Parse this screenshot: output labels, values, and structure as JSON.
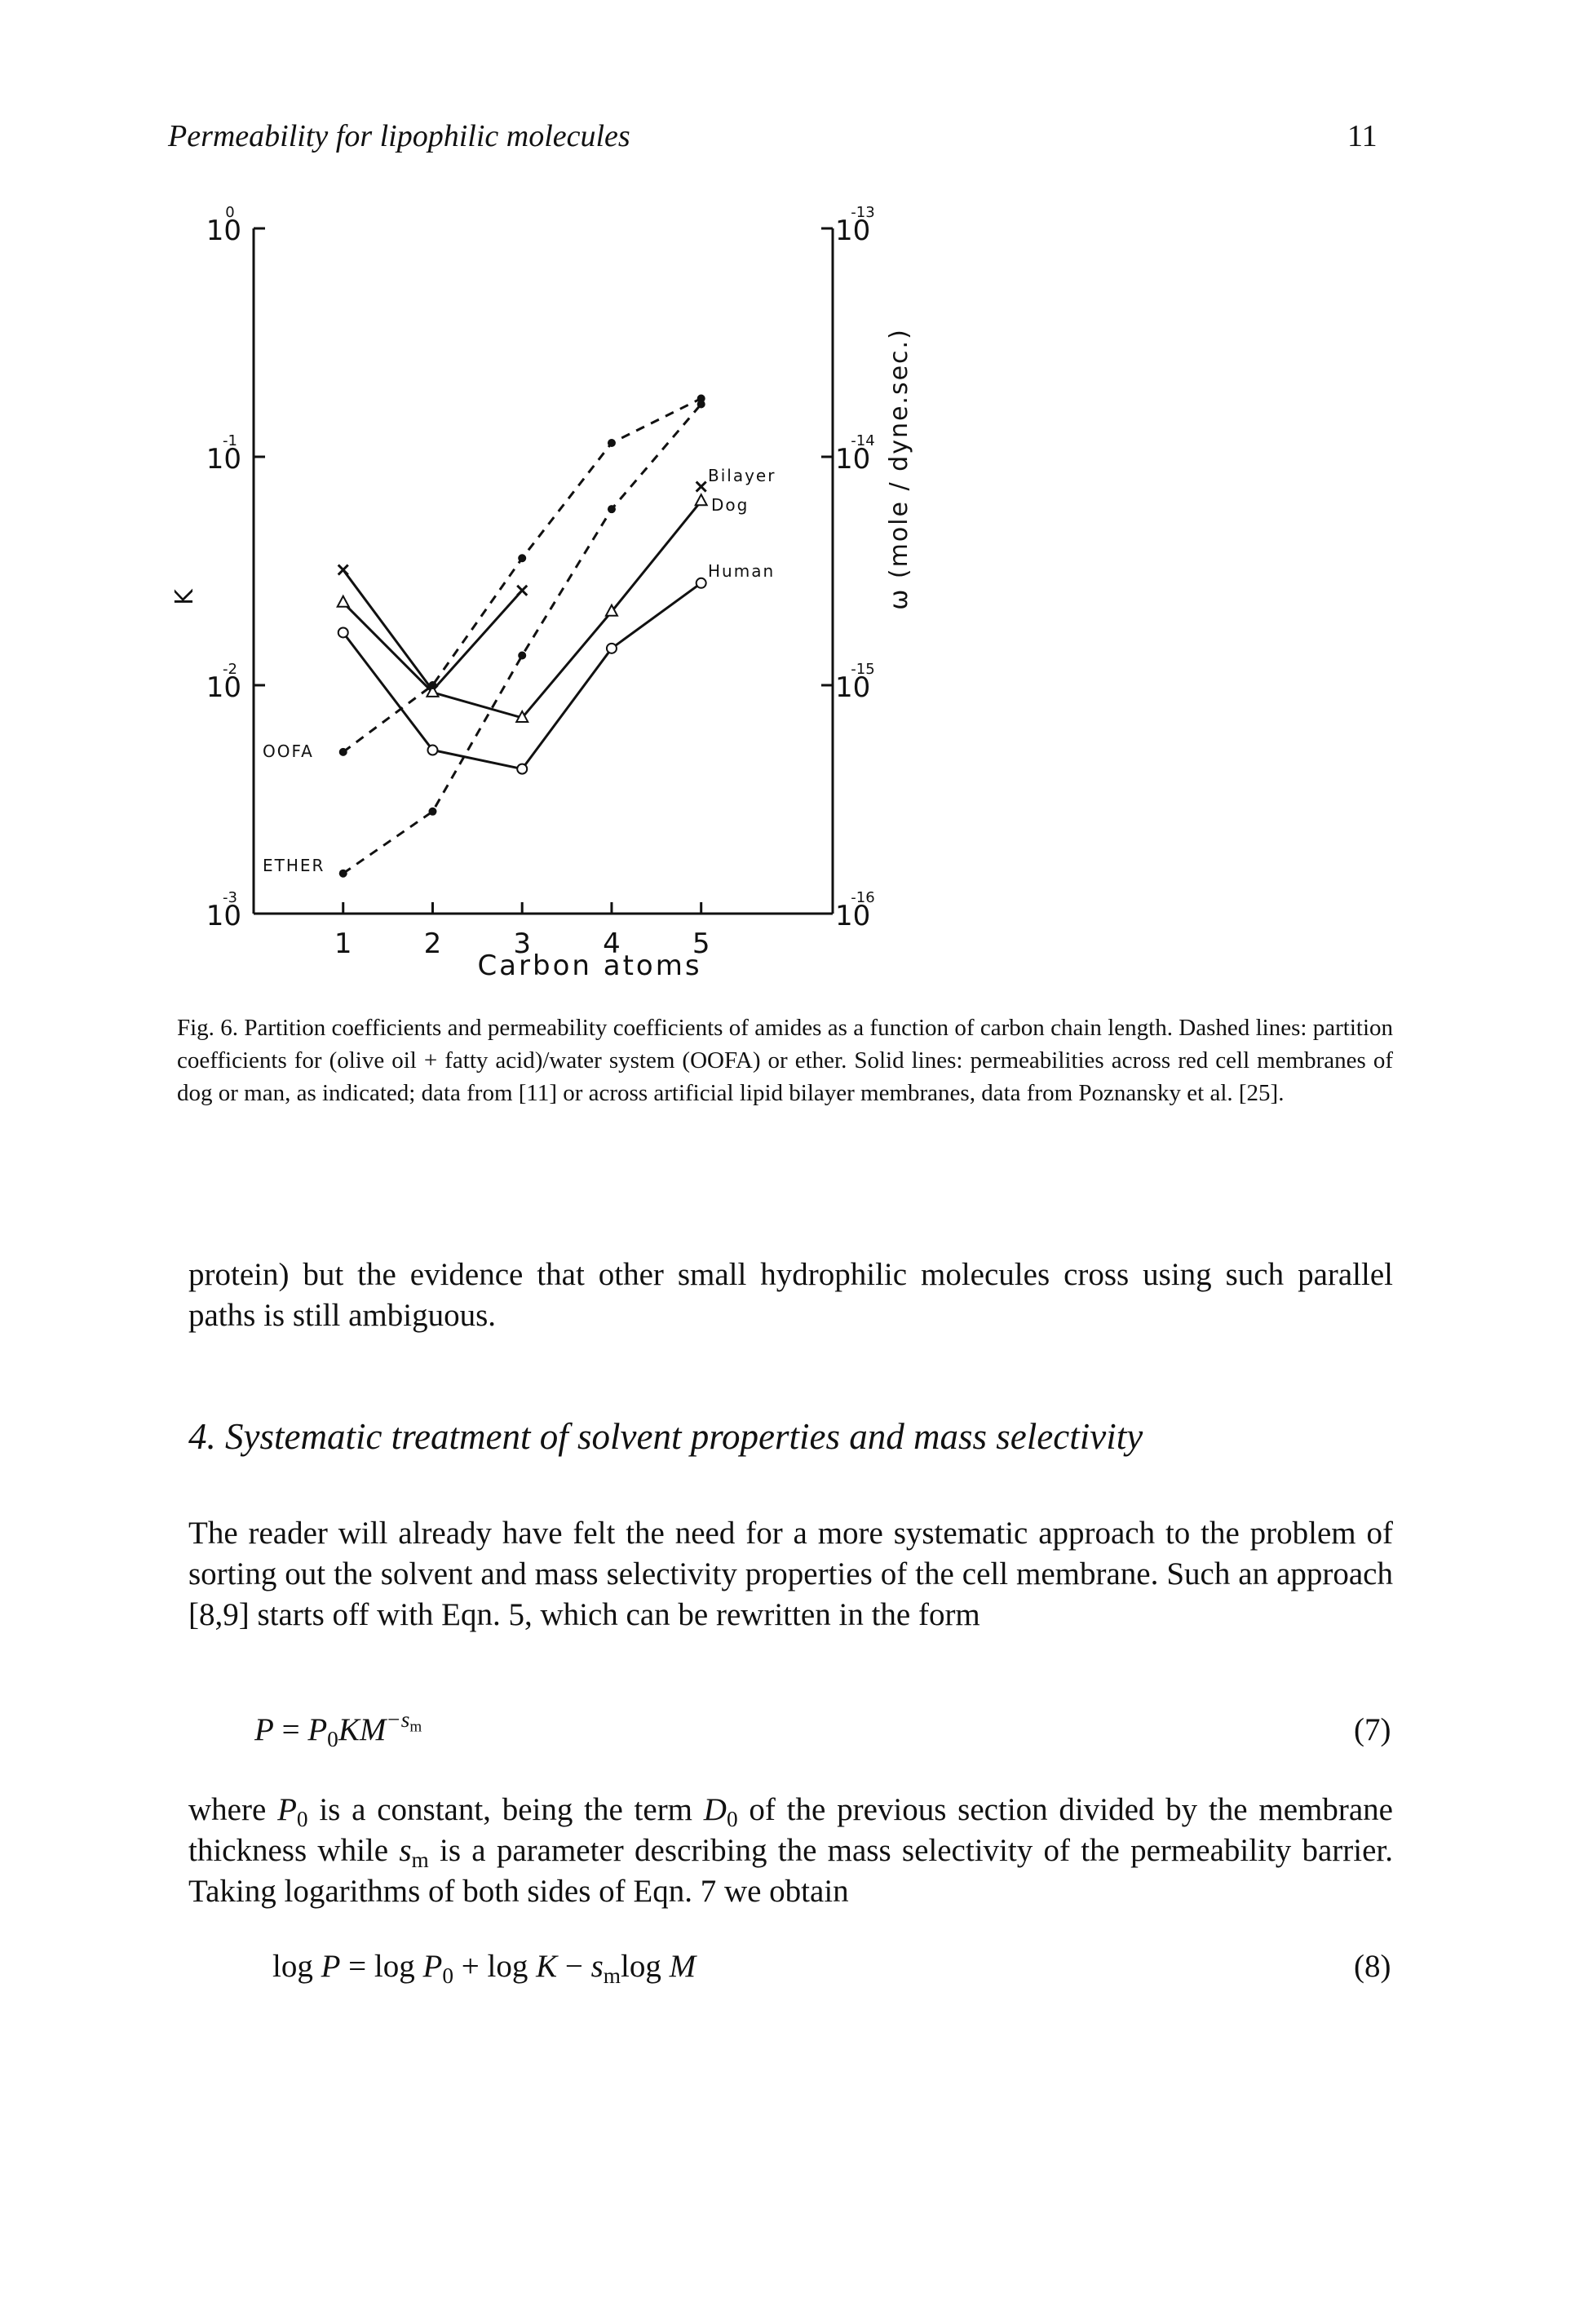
{
  "header": {
    "title": "Permeability for lipophilic molecules",
    "page_number": "11"
  },
  "chart_data": {
    "type": "line",
    "x_label": "Carbon atoms",
    "y_label": "K",
    "y2_label": "ω (mole / dyne.sec.)",
    "x": [
      1,
      2,
      3,
      4,
      5
    ],
    "xlim": [
      0,
      6.47
    ],
    "xticks": [
      1,
      2,
      3,
      4,
      5
    ],
    "log_scale": true,
    "ylim": [
      0.001,
      1
    ],
    "yticks": [
      {
        "value": 0.001,
        "label": "10",
        "exponent": "-3"
      },
      {
        "value": 0.01,
        "label": "10",
        "exponent": "-2"
      },
      {
        "value": 0.1,
        "label": "10",
        "exponent": "-1"
      },
      {
        "value": 1,
        "label": "10",
        "exponent": "0"
      }
    ],
    "y2lim": [
      1e-16,
      1e-13
    ],
    "y2ticks": [
      {
        "value": 1e-16,
        "label": "10",
        "exponent": "-16"
      },
      {
        "value": 1e-15,
        "label": "10",
        "exponent": "-15"
      },
      {
        "value": 1e-14,
        "label": "10",
        "exponent": "-14"
      },
      {
        "value": 1e-13,
        "label": "10",
        "exponent": "-13"
      }
    ],
    "series": [
      {
        "name": "Bilayer",
        "color": "#111111",
        "dashed": false,
        "marker": "x",
        "axis": "y2",
        "values": [
          3.2e-15,
          9.5e-16,
          2.6e-15,
          null,
          7.4e-15
        ]
      },
      {
        "name": "Dog",
        "color": "#111111",
        "dashed": false,
        "marker": "triangle",
        "axis": "y2",
        "values": [
          2.3e-15,
          9.3e-16,
          7.2e-16,
          2.1e-15,
          6.4e-15
        ]
      },
      {
        "name": "Human",
        "color": "#111111",
        "dashed": false,
        "marker": "circle",
        "axis": "y2",
        "values": [
          1.7e-15,
          5.2e-16,
          4.3e-16,
          1.45e-15,
          2.8e-15
        ]
      },
      {
        "name": "OOFA",
        "color": "#111111",
        "dashed": true,
        "marker": "dot",
        "axis": "y",
        "values": [
          0.0051,
          0.01,
          0.036,
          0.115,
          0.18
        ]
      },
      {
        "name": "ETHER",
        "color": "#111111",
        "dashed": true,
        "marker": "dot",
        "axis": "y",
        "values": [
          0.0015,
          0.0028,
          0.0135,
          0.059,
          0.17
        ]
      }
    ]
  },
  "caption": "Fig. 6. Partition coefficients and permeability coefficients of amides as a function of carbon chain length. Dashed lines: partition coefficients for (olive oil + fatty acid)/water system (OOFA) or ether. Solid lines: permeabilities across red cell membranes of dog or man, as indicated; data from [11] or across artificial lipid bilayer membranes, data from Poznansky et al. [25].",
  "paragraphs": [
    [
      "protein) but the evidence that other small hydrophilic molecules cross using such parallel paths is still ambiguous."
    ],
    [
      "The reader will already have felt the need for a more systematic approach to the problem of sorting out the solvent and mass selectivity properties of the cell membrane. Such an approach [8,9] starts off with Eqn. 5, which can be rewritten in the form"
    ],
    [
      "where ",
      "P",
      "0",
      " is a constant, being the term ",
      "D",
      "0",
      " of the previous section divided by the membrane thickness while ",
      "s",
      "m",
      " is a parameter describing the mass selectivity of the permeability barrier. Taking logarithms of both sides of Eqn. 7 we obtain"
    ]
  ],
  "section_heading": "4. Systematic treatment of solvent properties and mass selectivity",
  "equations": [
    {
      "parts": [
        "P",
        " = ",
        "P",
        "0",
        "KM",
        "−s",
        "m"
      ],
      "number": "(7)"
    },
    {
      "parts": [
        "log ",
        "P",
        " = log ",
        "P",
        "0",
        " + log ",
        "K",
        " − ",
        "s",
        "m",
        "log ",
        "M"
      ],
      "number": "(8)"
    }
  ]
}
